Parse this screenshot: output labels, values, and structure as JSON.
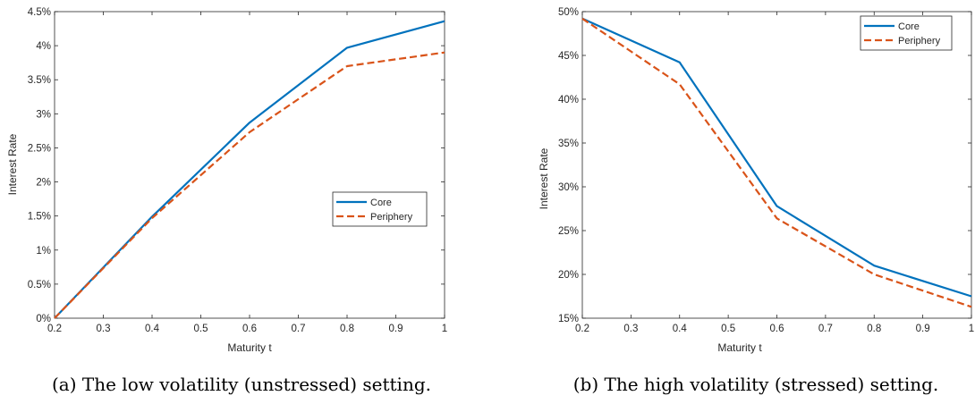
{
  "charts": [
    {
      "caption": "(a) The low volatility (unstressed) setting.",
      "chart_data": {
        "type": "line",
        "xlabel": "Maturity t",
        "ylabel": "Interest Rate",
        "xlim": [
          0.2,
          1
        ],
        "ylim": [
          0,
          0.045
        ],
        "x_ticks": [
          "0.2",
          "0.3",
          "0.4",
          "0.5",
          "0.6",
          "0.7",
          "0.8",
          "0.9",
          "1"
        ],
        "y_ticks": [
          "0%",
          "0.5%",
          "1%",
          "1.5%",
          "2%",
          "2.5%",
          "3%",
          "3.5%",
          "4%",
          "4.5%"
        ],
        "legend_position": "center-right",
        "grid": false,
        "x": [
          0.2,
          0.4,
          0.6,
          0.8,
          1.0
        ],
        "series": [
          {
            "name": "Core",
            "color": "#0072BD",
            "style": "solid",
            "values": [
              0.0,
              0.0149,
              0.0287,
              0.0397,
              0.0436
            ]
          },
          {
            "name": "Periphery",
            "color": "#D95319",
            "style": "dashed",
            "values": [
              0.0,
              0.0147,
              0.0273,
              0.037,
              0.039
            ]
          }
        ]
      }
    },
    {
      "caption": "(b) The high volatility (stressed) setting.",
      "chart_data": {
        "type": "line",
        "xlabel": "Maturity t",
        "ylabel": "Interest Rate",
        "xlim": [
          0.2,
          1
        ],
        "ylim": [
          0.15,
          0.5
        ],
        "x_ticks": [
          "0.2",
          "0.3",
          "0.4",
          "0.5",
          "0.6",
          "0.7",
          "0.8",
          "0.9",
          "1"
        ],
        "y_ticks": [
          "15%",
          "20%",
          "25%",
          "30%",
          "35%",
          "40%",
          "45%",
          "50%"
        ],
        "legend_position": "top-right",
        "grid": false,
        "x": [
          0.2,
          0.4,
          0.6,
          0.8,
          1.0
        ],
        "series": [
          {
            "name": "Core",
            "color": "#0072BD",
            "style": "solid",
            "values": [
              0.492,
              0.442,
              0.278,
              0.21,
              0.175
            ]
          },
          {
            "name": "Periphery",
            "color": "#D95319",
            "style": "dashed",
            "values": [
              0.492,
              0.417,
              0.264,
              0.2,
              0.163
            ]
          }
        ]
      }
    }
  ]
}
